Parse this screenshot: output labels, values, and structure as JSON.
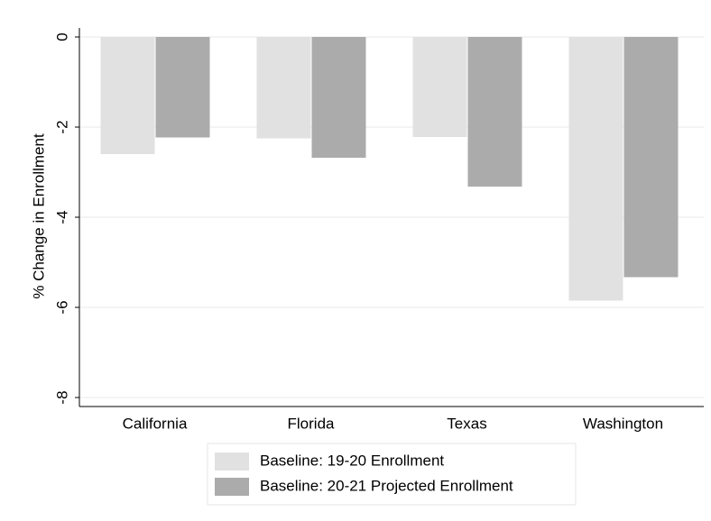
{
  "chart_data": {
    "type": "bar",
    "y_label": "% Change in Enrollment",
    "categories": [
      "California",
      "Florida",
      "Texas",
      "Washington"
    ],
    "series": [
      {
        "name": "Baseline: 19-20 Enrollment",
        "color": "#e1e1e1",
        "values": [
          -2.6,
          -2.25,
          -2.22,
          -5.85
        ]
      },
      {
        "name": "Baseline: 20-21 Projected Enrollment",
        "color": "#ababab",
        "values": [
          -2.23,
          -2.68,
          -3.32,
          -5.33
        ]
      }
    ],
    "ylim": [
      -8.2,
      0.2
    ],
    "yticks": [
      0,
      -2,
      -4,
      -6,
      -8
    ],
    "grid": true
  }
}
